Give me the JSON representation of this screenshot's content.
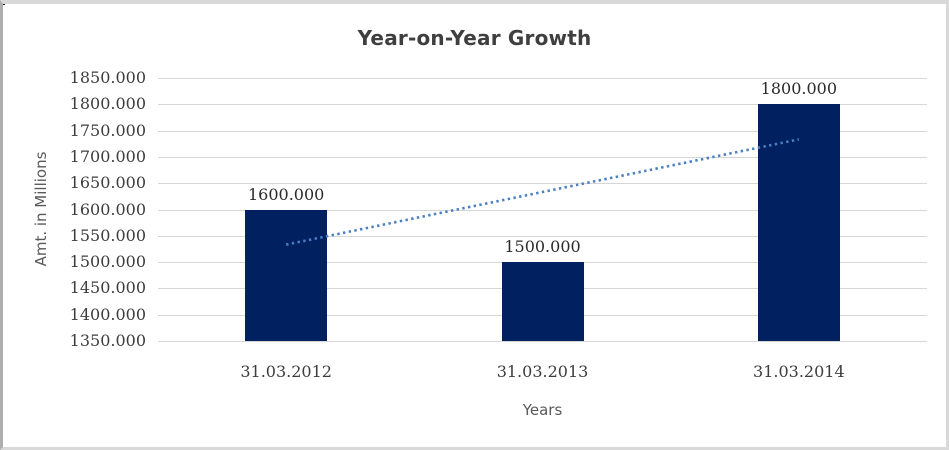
{
  "chart_data": {
    "type": "bar",
    "title": "Year-on-Year Growth",
    "categories": [
      "31.03.2012",
      "31.03.2013",
      "31.03.2014"
    ],
    "values": [
      1600,
      1500,
      1800
    ],
    "data_labels": [
      "1600.000",
      "1500.000",
      "1800.000"
    ],
    "xlabel": "Years",
    "ylabel": "Amt. in Millions",
    "ylim": [
      1350,
      1850
    ],
    "ytick_step": 50,
    "ytick_decimals": 3,
    "grid": true,
    "legend": "none",
    "bar_color": "#002060",
    "gridline_color": "#d6d6d6",
    "trendline": {
      "type": "linear",
      "style": "dotted",
      "color": "#4a7fc1",
      "start_value": 1533.3,
      "end_value": 1733.3
    }
  }
}
